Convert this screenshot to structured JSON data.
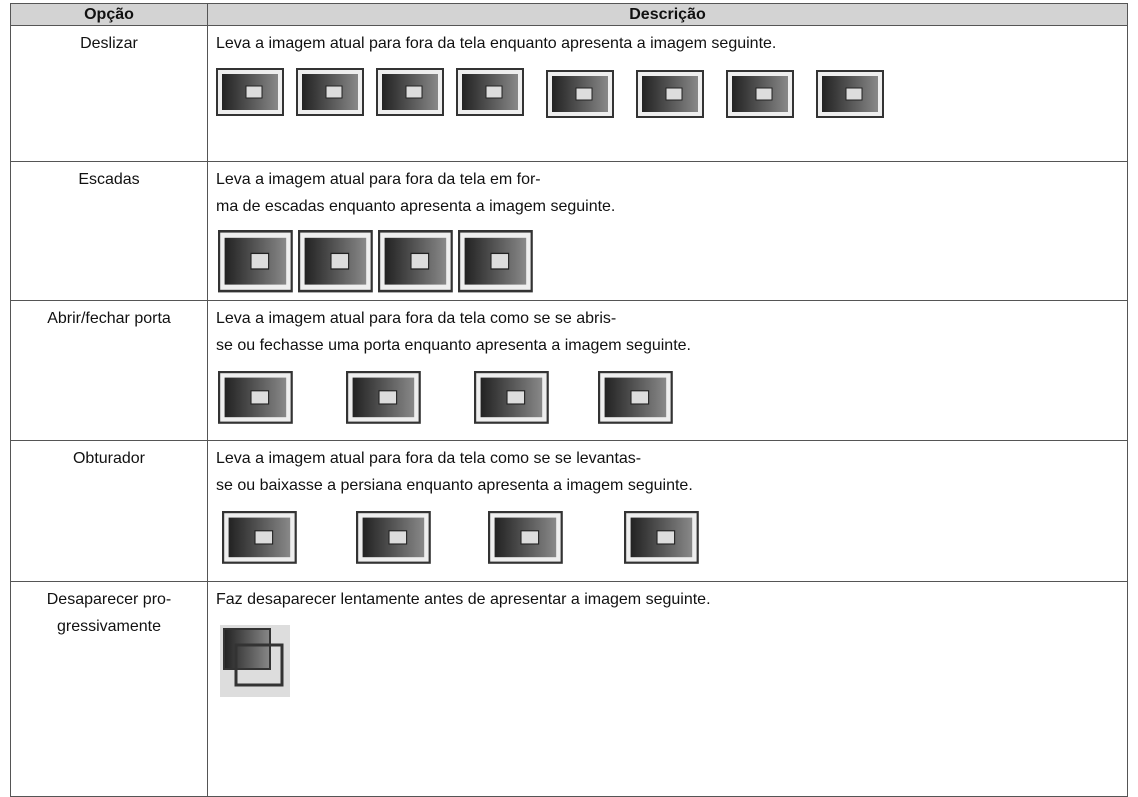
{
  "table": {
    "header": [
      "Opção",
      "Descrição"
    ],
    "rows": [
      {
        "option": [
          "Deslizar"
        ],
        "description": [
          "Leva a imagem atual para fora da tela enquanto apresenta a imagem seguinte."
        ]
      },
      {
        "option": [
          "Escadas"
        ],
        "description": [
          "Leva a imagem atual para fora da tela em for-",
          "ma de escadas enquanto apresenta a imagem seguinte."
        ]
      },
      {
        "option": [
          "Abrir/fechar porta"
        ],
        "description": [
          "Leva a imagem atual para fora da tela como se se abris-",
          "se ou fechasse uma porta enquanto apresenta a imagem seguinte."
        ]
      },
      {
        "option": [
          "Obturador"
        ],
        "description": [
          "Leva a imagem atual para fora da tela como se se levantas-",
          "se ou baixasse a persiana enquanto apresenta a imagem seguinte."
        ]
      },
      {
        "option": [
          "Desaparecer pro-",
          "gressivamente"
        ],
        "description": [
          "Faz desaparecer lentamente antes de apresentar a imagem seguinte."
        ]
      }
    ]
  }
}
